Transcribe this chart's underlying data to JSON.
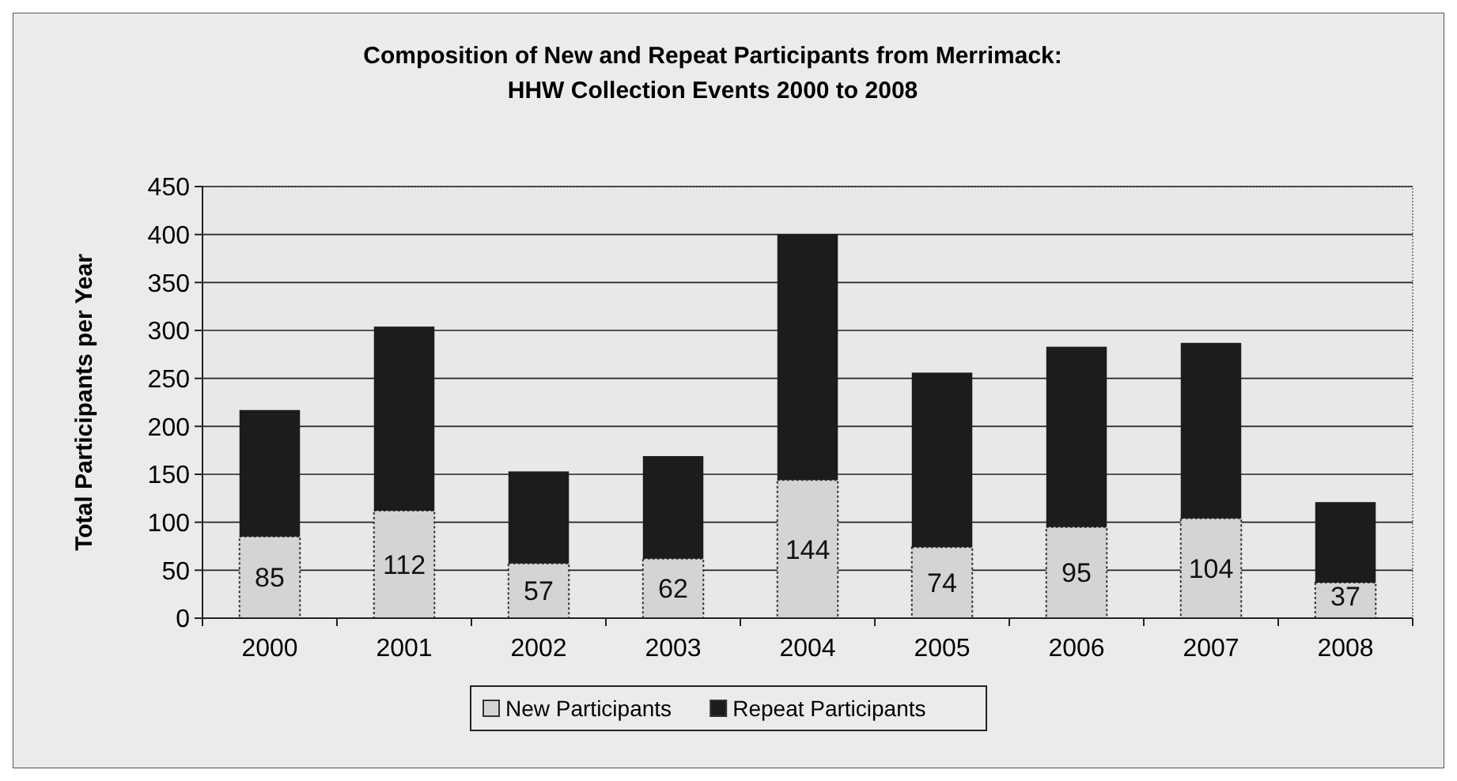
{
  "chart_data": {
    "type": "bar",
    "title": "Composition of New and Repeat Participants from Merrimack:\nHHW Collection Events 2000 to 2008",
    "ylabel": "Total Participants per Year",
    "categories": [
      "2000",
      "2001",
      "2002",
      "2003",
      "2004",
      "2005",
      "2006",
      "2007",
      "2008"
    ],
    "stacked": true,
    "series": [
      {
        "name": "New Participants",
        "color": "#d4d4d4",
        "values": [
          85,
          112,
          57,
          62,
          144,
          74,
          95,
          104,
          37
        ],
        "value_labels": [
          "85",
          "112",
          "57",
          "62",
          "144",
          "74",
          "95",
          "104",
          "37"
        ]
      },
      {
        "name": "Repeat Participants",
        "color": "#1c1c1c",
        "values": [
          132,
          192,
          96,
          107,
          256,
          182,
          188,
          183,
          84
        ]
      }
    ],
    "ylim": [
      0,
      450
    ],
    "yticks": [
      0,
      50,
      100,
      150,
      200,
      250,
      300,
      350,
      400,
      450
    ],
    "grid": "y",
    "legend": "bottom"
  }
}
